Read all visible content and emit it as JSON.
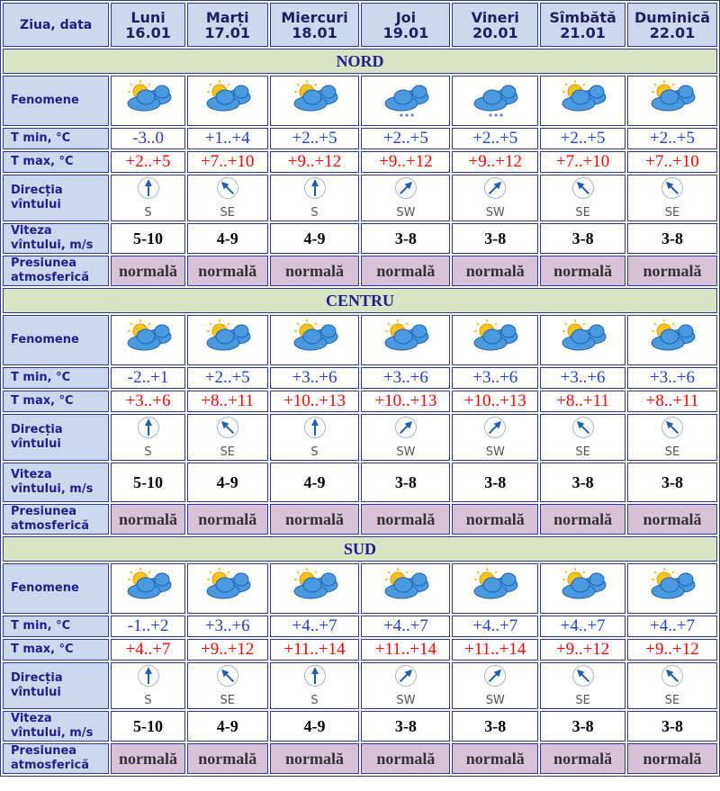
{
  "header": {
    "label": "Ziua, data",
    "days": [
      {
        "name": "Luni",
        "date": "16.01"
      },
      {
        "name": "Marți",
        "date": "17.01"
      },
      {
        "name": "Miercuri",
        "date": "18.01"
      },
      {
        "name": "Joi",
        "date": "19.01"
      },
      {
        "name": "Vineri",
        "date": "20.01"
      },
      {
        "name": "Sîmbătă",
        "date": "21.01"
      },
      {
        "name": "Duminică",
        "date": "22.01"
      }
    ]
  },
  "row_labels": {
    "fenomene": "Fenomene",
    "tmin": "T min, °C",
    "tmax": "T max, °C",
    "dir": "Direcția vîntului",
    "vit": "Viteza vîntului, m/s",
    "pres": "Presiunea atmosferică"
  },
  "regions": [
    {
      "name": "NORD",
      "fenomene": [
        "partly-cloudy-icon",
        "partly-cloudy-icon",
        "partly-cloudy-icon",
        "cloud-snow-icon",
        "cloud-snow-icon",
        "partly-cloudy-icon",
        "partly-cloudy-icon"
      ],
      "tmin": [
        "-3..0",
        "+1..+4",
        "+2..+5",
        "+2..+5",
        "+2..+5",
        "+2..+5",
        "+2..+5"
      ],
      "tmax": [
        "+2..+5",
        "+7..+10",
        "+9..+12",
        "+9..+12",
        "+9..+12",
        "+7..+10",
        "+7..+10"
      ],
      "dir": [
        "S",
        "SE",
        "S",
        "SW",
        "SW",
        "SE",
        "SE"
      ],
      "vit": [
        "5-10",
        "4-9",
        "4-9",
        "3-8",
        "3-8",
        "3-8",
        "3-8"
      ],
      "pres": [
        "normală",
        "normală",
        "normală",
        "normală",
        "normală",
        "normală",
        "normală"
      ]
    },
    {
      "name": "CENTRU",
      "fenomene": [
        "partly-cloudy-icon",
        "partly-cloudy-icon",
        "partly-cloudy-icon",
        "partly-cloudy-icon",
        "partly-cloudy-icon",
        "partly-cloudy-icon",
        "partly-cloudy-icon"
      ],
      "tmin": [
        "-2..+1",
        "+2..+5",
        "+3..+6",
        "+3..+6",
        "+3..+6",
        "+3..+6",
        "+3..+6"
      ],
      "tmax": [
        "+3..+6",
        "+8..+11",
        "+10..+13",
        "+10..+13",
        "+10..+13",
        "+8..+11",
        "+8..+11"
      ],
      "dir": [
        "S",
        "SE",
        "S",
        "SW",
        "SW",
        "SE",
        "SE"
      ],
      "vit": [
        "5-10",
        "4-9",
        "4-9",
        "3-8",
        "3-8",
        "3-8",
        "3-8"
      ],
      "pres": [
        "normală",
        "normală",
        "normală",
        "normală",
        "normală",
        "normală",
        "normală"
      ]
    },
    {
      "name": "SUD",
      "fenomene": [
        "partly-cloudy-icon",
        "partly-cloudy-icon",
        "partly-cloudy-icon",
        "partly-cloudy-icon",
        "partly-cloudy-icon",
        "partly-cloudy-icon",
        "partly-cloudy-icon"
      ],
      "tmin": [
        "-1..+2",
        "+3..+6",
        "+4..+7",
        "+4..+7",
        "+4..+7",
        "+4..+7",
        "+4..+7"
      ],
      "tmax": [
        "+4..+7",
        "+9..+12",
        "+11..+14",
        "+11..+14",
        "+11..+14",
        "+9..+12",
        "+9..+12"
      ],
      "dir": [
        "S",
        "SE",
        "S",
        "SW",
        "SW",
        "SE",
        "SE"
      ],
      "vit": [
        "5-10",
        "4-9",
        "4-9",
        "3-8",
        "3-8",
        "3-8",
        "3-8"
      ],
      "pres": [
        "normală",
        "normală",
        "normală",
        "normală",
        "normală",
        "normală",
        "normală"
      ]
    }
  ],
  "colors": {
    "label_bg": "#cdd8ef",
    "region_bg": "#d8e4c4",
    "pressure_bg": "#d8c2d8",
    "tmin": "#1f3fd0",
    "tmax": "#ff0000",
    "border": "#2b3a8f"
  }
}
